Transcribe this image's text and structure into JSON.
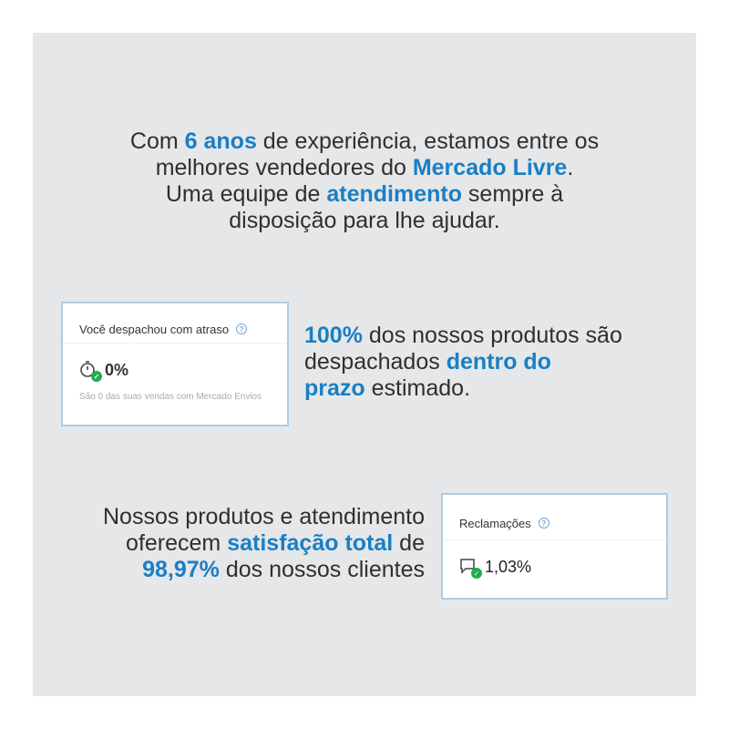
{
  "headline": {
    "l1a": "Com ",
    "l1b": "6 anos",
    "l1c": " de experiência, estamos entre os",
    "l2a": "melhores vendedores do ",
    "l2b": "Mercado Livre",
    "l2c": ".",
    "l3a": "Uma equipe de ",
    "l3b": "atendimento",
    "l3c": " sempre à",
    "l4": "disposição para lhe ajudar."
  },
  "shipping": {
    "a": "100%",
    "b": " dos nossos produtos são",
    "c": "despachados ",
    "d": "dentro do",
    "e": "prazo",
    "f": " estimado."
  },
  "satisfaction": {
    "l1": "Nossos produtos e atendimento",
    "l2a": "oferecem ",
    "l2b": "satisfação total",
    "l2c": " de",
    "l3a": "98,97%",
    "l3b": " dos nossos clientes"
  },
  "card_delay": {
    "title": "Você despachou com atraso",
    "help": "?",
    "value": "0%",
    "icon": "stopwatch-check-icon",
    "note": "São 0 das suas vendas com Mercado Envios"
  },
  "card_claims": {
    "title": "Reclamações",
    "help": "?",
    "value": "1,03%",
    "icon": "chat-check-icon"
  },
  "colors": {
    "accent": "#1a7fc4",
    "panel": "#e6e7e9",
    "check": "#1fad4f"
  }
}
